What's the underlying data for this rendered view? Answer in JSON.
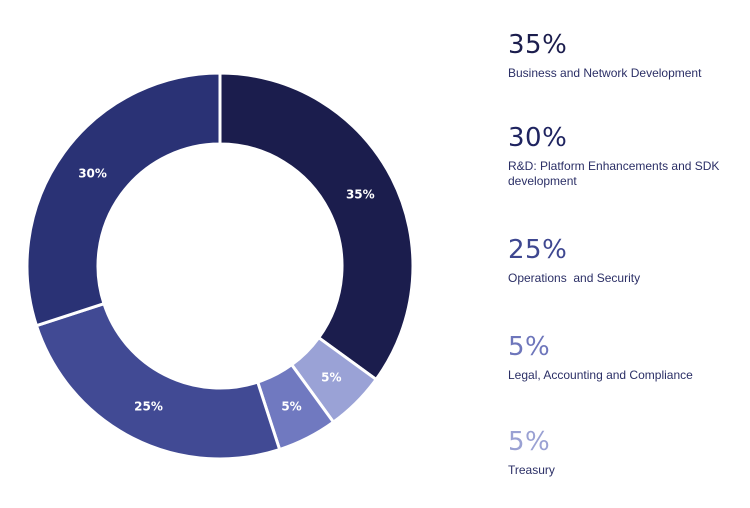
{
  "chart_data": {
    "type": "pie",
    "variant": "donut",
    "categories": [
      "Business and Network Development",
      "R&D: Platform Enhancements and SDK development",
      "Operations  and Security",
      "Legal, Accounting and Compliance",
      "Treasury"
    ],
    "values": [
      35,
      30,
      25,
      5,
      5
    ],
    "slice_labels": [
      "35%",
      "30%",
      "25%",
      "5%",
      "5%"
    ],
    "colors": [
      "#1b1d4d",
      "#2a3275",
      "#414a94",
      "#7079c0",
      "#9aa2d6"
    ],
    "legend_colors": [
      "#1b1d4d",
      "#1f2460",
      "#3e4790",
      "#6e76bb",
      "#9aa1d3"
    ],
    "legend_placement": "right"
  },
  "legend": [
    {
      "percent": "35%",
      "label": "Business and Network Development"
    },
    {
      "percent": "30%",
      "label": "R&D: Platform Enhancements and SDK development"
    },
    {
      "percent": "25%",
      "label": "Operations  and Security"
    },
    {
      "percent": "5%",
      "label": "Legal, Accounting and Compliance"
    },
    {
      "percent": "5%",
      "label": "Treasury"
    }
  ]
}
